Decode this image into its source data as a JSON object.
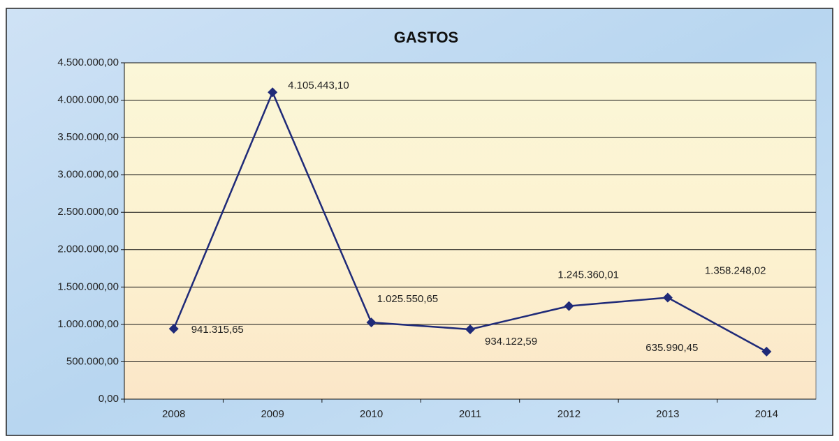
{
  "chart_data": {
    "type": "line",
    "title": "GASTOS",
    "categories": [
      "2008",
      "2009",
      "2010",
      "2011",
      "2012",
      "2013",
      "2014"
    ],
    "series": [
      {
        "name": "GASTOS",
        "color": "#1f2a78",
        "values": [
          941315.65,
          4105443.1,
          1025550.65,
          934122.59,
          1245360.01,
          1358248.02,
          635990.45
        ],
        "value_labels": [
          "941.315,65",
          "4.105.443,10",
          "1.025.550,65",
          "934.122,59",
          "1.245.360,01",
          "1.358.248,02",
          "635.990,45"
        ]
      }
    ],
    "ylim": [
      0,
      4500000
    ],
    "yticks": [
      {
        "value": 0,
        "label": "0,00"
      },
      {
        "value": 500000,
        "label": "500.000,00"
      },
      {
        "value": 1000000,
        "label": "1.000.000,00"
      },
      {
        "value": 1500000,
        "label": "1.500.000,00"
      },
      {
        "value": 2000000,
        "label": "2.000.000,00"
      },
      {
        "value": 2500000,
        "label": "2.500.000,00"
      },
      {
        "value": 3000000,
        "label": "3.000.000,00"
      },
      {
        "value": 3500000,
        "label": "3.500.000,00"
      },
      {
        "value": 4000000,
        "label": "4.000.000,00"
      },
      {
        "value": 4500000,
        "label": "4.500.000,00"
      }
    ],
    "grid": true
  }
}
